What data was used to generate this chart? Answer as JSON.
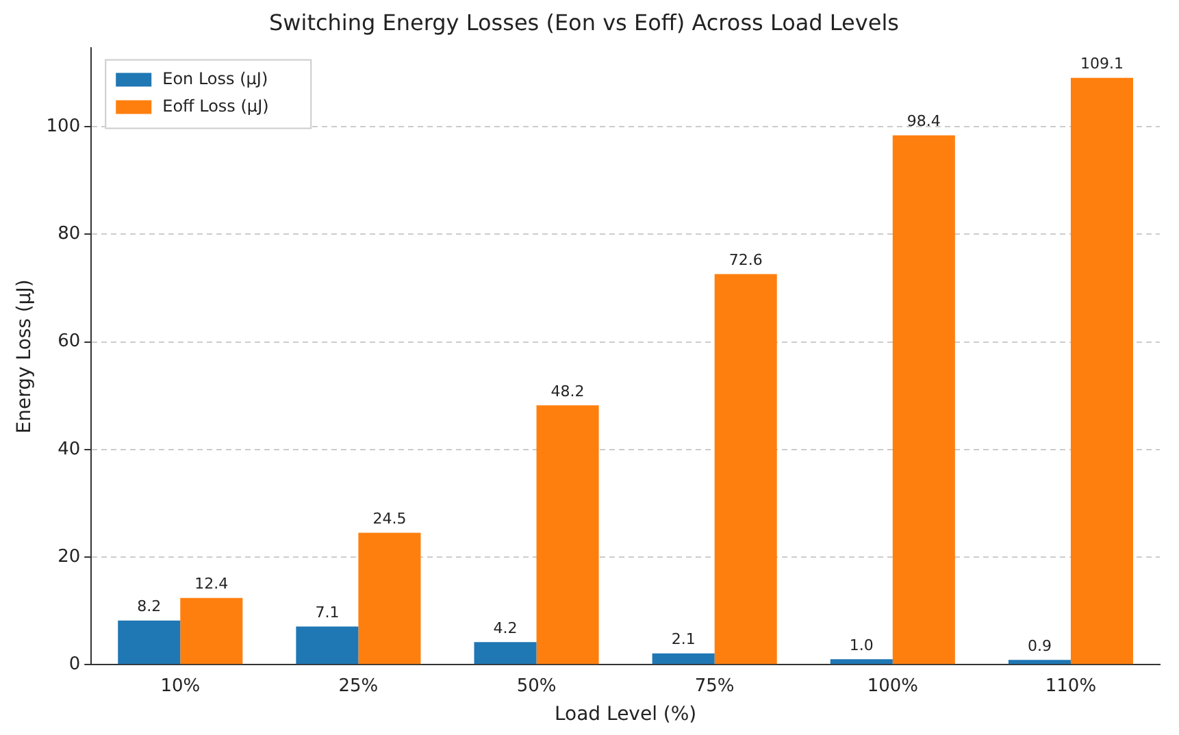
{
  "chart_data": {
    "type": "bar",
    "title": "Switching Energy Losses (Eon vs Eoff) Across Load Levels",
    "xlabel": "Load Level (%)",
    "ylabel": "Energy Loss (μJ)",
    "categories": [
      "10%",
      "25%",
      "50%",
      "75%",
      "100%",
      "110%"
    ],
    "series": [
      {
        "name": "Eon Loss (μJ)",
        "color": "#1f77b4",
        "values": [
          8.2,
          7.1,
          4.2,
          2.1,
          1.0,
          0.9
        ],
        "value_labels": [
          "8.2",
          "7.1",
          "4.2",
          "2.1",
          "1.0",
          "0.9"
        ]
      },
      {
        "name": "Eoff Loss (μJ)",
        "color": "#ff7f0e",
        "values": [
          12.4,
          24.5,
          48.2,
          72.6,
          98.4,
          109.1
        ],
        "value_labels": [
          "12.4",
          "24.5",
          "48.2",
          "72.6",
          "98.4",
          "109.1"
        ]
      }
    ],
    "ylim": [
      0,
      114.6
    ],
    "yticks": [
      0,
      20,
      40,
      60,
      80,
      100
    ],
    "grid": "y",
    "legend": "top left"
  }
}
